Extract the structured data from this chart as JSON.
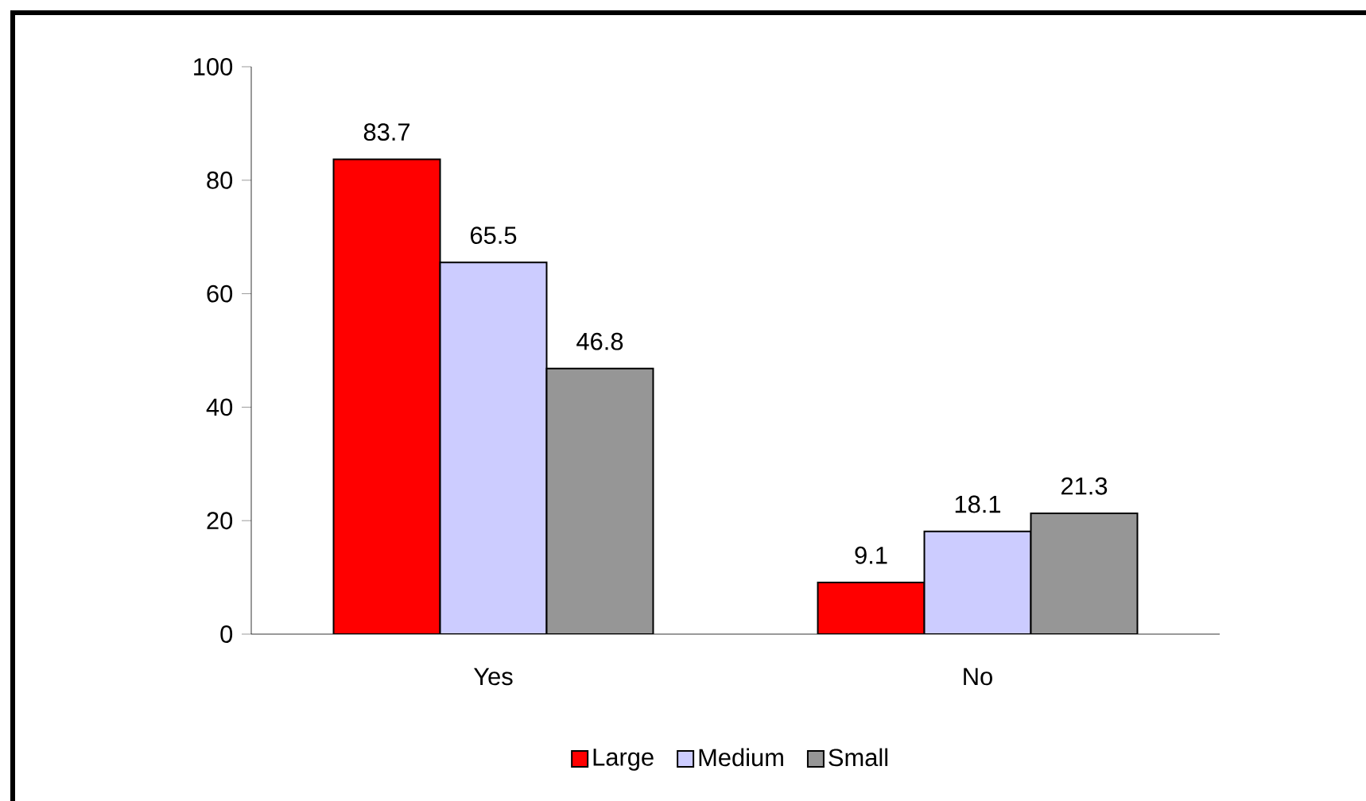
{
  "chart_data": {
    "type": "bar",
    "categories": [
      "Yes",
      "No"
    ],
    "series": [
      {
        "name": "Large",
        "color": "#ff0000",
        "values": [
          83.7,
          9.1
        ]
      },
      {
        "name": "Medium",
        "color": "#ccccff",
        "values": [
          65.5,
          18.1
        ]
      },
      {
        "name": "Small",
        "color": "#969696",
        "values": [
          46.8,
          21.3
        ]
      }
    ],
    "ylim": [
      0,
      100
    ],
    "yticks": [
      0,
      20,
      40,
      60,
      80,
      100
    ],
    "data_labels": true,
    "legend": "bottom",
    "grid": false
  }
}
